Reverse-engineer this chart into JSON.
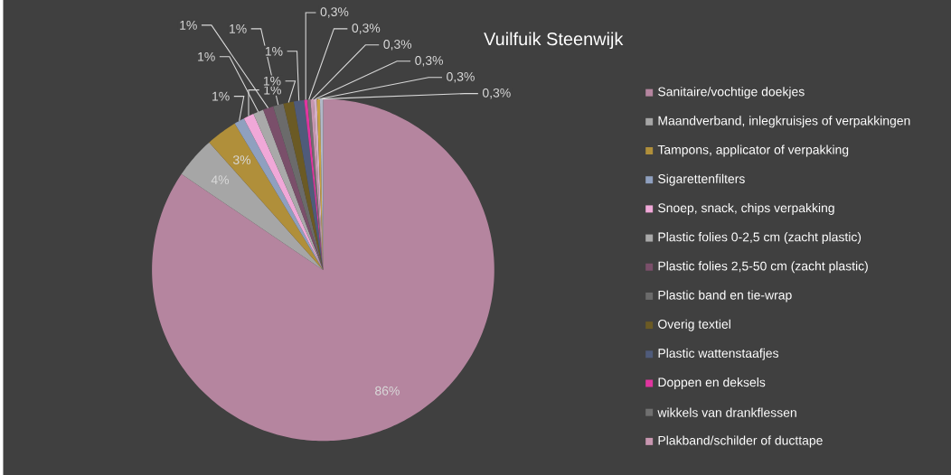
{
  "chart_data": {
    "type": "pie",
    "title": "Vuilfuik Steenwijk",
    "categories": [
      "Sanitaire/vochtige doekjes",
      "Maandverband, inlegkruisjes of verpakkingen",
      "Tampons, applicator of verpakking",
      "Sigarettenfilters",
      "Snoep, snack, chips verpakking",
      "Plastic folies 0-2,5 cm (zacht plastic)",
      "Plastic folies 2,5-50 cm (zacht plastic)",
      "Plastic band en tie-wrap",
      "Overig textiel",
      "Plastic wattenstaafjes",
      "Doppen en deksels",
      "wikkels van drankflessen",
      "Plakband/schilder of ducttape",
      null,
      null,
      null
    ],
    "values": [
      86,
      4,
      3,
      1,
      1,
      1,
      1,
      1,
      1,
      1,
      0.3,
      0.3,
      0.3,
      0.3,
      0.3,
      0.3
    ],
    "value_labels": [
      "86%",
      "4%",
      "3%",
      "1%",
      "1%",
      "1%",
      "1%",
      "1%",
      "1%",
      "1%",
      "0,3%",
      "0,3%",
      "0,3%",
      "0,3%",
      "0,3%",
      "0,3%"
    ],
    "colors": [
      "#b5859f",
      "#a6a6a6",
      "#b08f3a",
      "#8fa0bf",
      "#f0a8d8",
      "#a9a9a9",
      "#7a4f6a",
      "#6b6b6b",
      "#6b5a24",
      "#4f5b7a",
      "#e0359f",
      "#707070",
      "#c896b0",
      "#d4b0c8",
      "#c8a040",
      "#b0b8c8"
    ],
    "legend": "right"
  }
}
